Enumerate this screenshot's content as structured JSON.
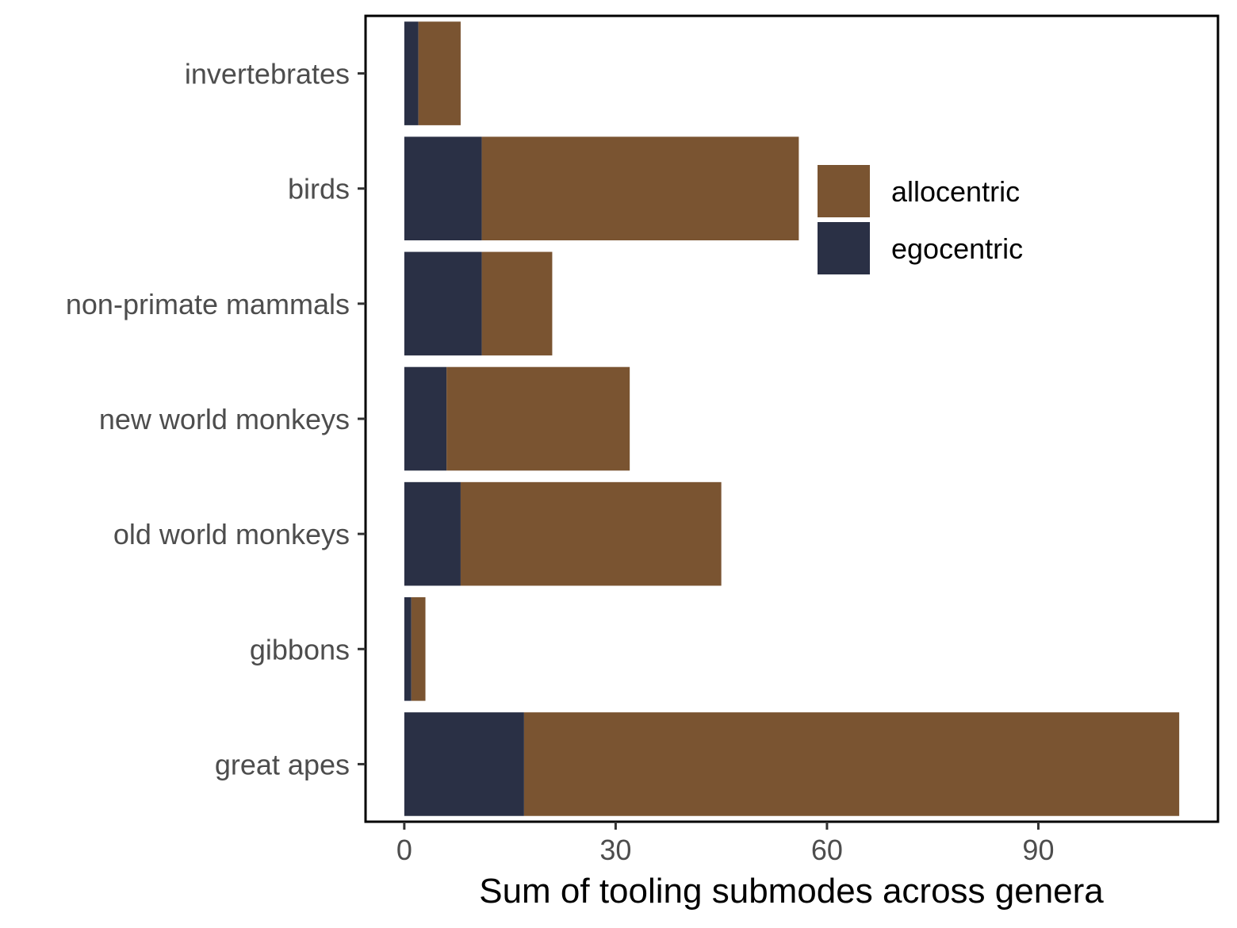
{
  "chart_data": {
    "type": "bar",
    "orientation": "horizontal",
    "stacked": true,
    "categories": [
      "invertebrates",
      "birds",
      "non-primate mammals",
      "new world monkeys",
      "old world monkeys",
      "gibbons",
      "great apes"
    ],
    "series": [
      {
        "name": "egocentric",
        "color": "#2a3045",
        "values": [
          2,
          11,
          11,
          6,
          8,
          1,
          17
        ]
      },
      {
        "name": "allocentric",
        "color": "#7a5431",
        "values": [
          6,
          45,
          10,
          26,
          37,
          2,
          93
        ]
      }
    ],
    "xlabel": "Sum of tooling submodes across genera",
    "ylabel": "",
    "xlim": [
      -5.5,
      115.5
    ],
    "xticks": [
      0,
      30,
      60,
      90
    ],
    "legend": {
      "position": "inside-top-right",
      "entries": [
        "allocentric",
        "egocentric"
      ]
    },
    "grid": false
  }
}
